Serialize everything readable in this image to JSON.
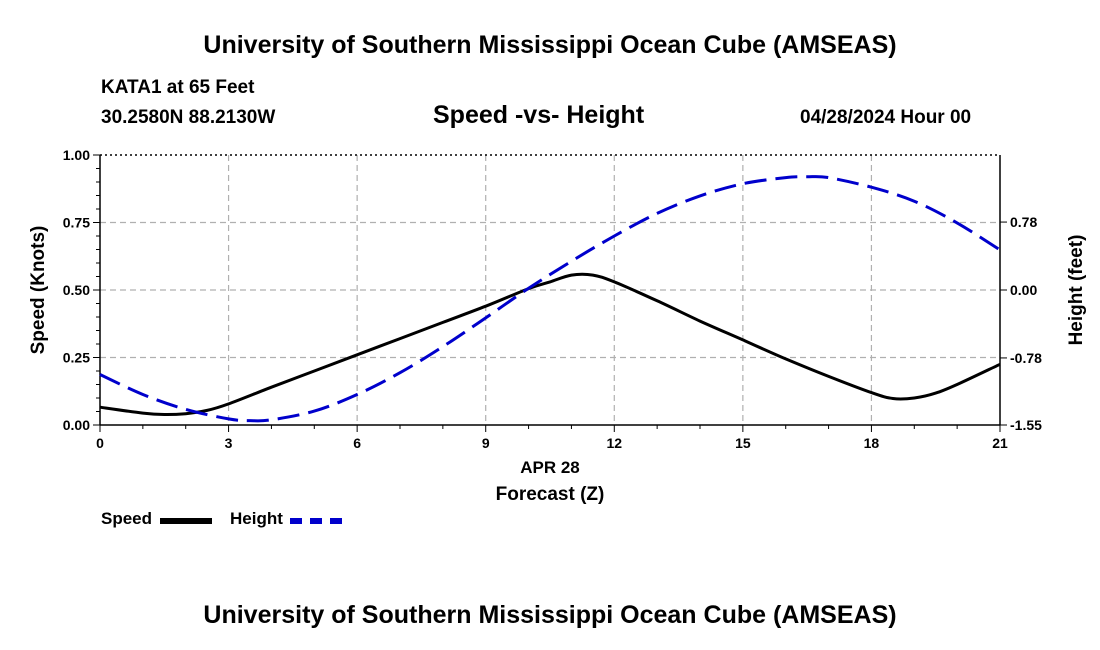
{
  "header": {
    "title": "University of Southern Mississippi Ocean Cube (AMSEAS)",
    "station": "KATA1 at 65 Feet",
    "coords": "30.2580N  88.2130W",
    "chart_title": "Speed -vs- Height",
    "datetime": "04/28/2024 Hour 00"
  },
  "footer": {
    "title": "University of Southern Mississippi Ocean Cube (AMSEAS)"
  },
  "legend": {
    "speed_label": "Speed",
    "height_label": "Height",
    "speed_color": "#000000",
    "height_color": "#0000cc"
  },
  "chart_data": {
    "type": "line",
    "title": "Speed -vs- Height",
    "xlabel": "Forecast (Z)",
    "xsublabel": "APR 28",
    "ylabel": "Speed (Knots)",
    "y2label": "Height (feet)",
    "xlim": [
      0,
      21
    ],
    "ylim": [
      0,
      1
    ],
    "y2lim": [
      -1.55,
      1.55
    ],
    "x_ticks": [
      0,
      3,
      6,
      9,
      12,
      15,
      18,
      21
    ],
    "x_tick_labels": [
      "0",
      "3",
      "6",
      "9",
      "12",
      "15",
      "18",
      "21"
    ],
    "y_ticks": [
      0,
      0.25,
      0.5,
      0.75,
      1.0
    ],
    "y_tick_labels": [
      "0.00",
      "0.25",
      "0.50",
      "0.75",
      "1.00"
    ],
    "y2_ticks": [
      -1.55,
      -0.78,
      0.0,
      0.78
    ],
    "y2_tick_labels": [
      "-1.55",
      "-0.78",
      "0.00",
      "0.78"
    ],
    "grid": true,
    "series": [
      {
        "name": "Speed",
        "axis": "left",
        "style": "solid",
        "color": "#000000",
        "x": [
          0,
          1,
          1.5,
          2,
          2.5,
          3,
          4,
          5,
          6,
          7,
          8,
          9,
          10,
          10.5,
          11,
          11.5,
          12,
          13,
          14,
          15,
          16,
          17,
          18,
          18.5,
          19,
          19.5,
          20,
          21
        ],
        "values": [
          0.066,
          0.044,
          0.039,
          0.042,
          0.054,
          0.078,
          0.14,
          0.2,
          0.26,
          0.32,
          0.38,
          0.44,
          0.505,
          0.53,
          0.555,
          0.555,
          0.53,
          0.46,
          0.385,
          0.315,
          0.245,
          0.18,
          0.12,
          0.098,
          0.1,
          0.118,
          0.15,
          0.225
        ]
      },
      {
        "name": "Height",
        "axis": "right",
        "style": "dashed",
        "color": "#0000cc",
        "x": [
          0,
          1,
          2,
          3,
          3.5,
          4,
          5,
          6,
          7,
          8,
          9,
          10,
          11,
          12,
          13,
          14,
          15,
          16,
          16.5,
          17,
          18,
          19,
          20,
          21
        ],
        "values": [
          -0.97,
          -1.2,
          -1.37,
          -1.48,
          -1.5,
          -1.49,
          -1.39,
          -1.2,
          -0.95,
          -0.65,
          -0.32,
          0.02,
          0.33,
          0.62,
          0.88,
          1.08,
          1.22,
          1.29,
          1.3,
          1.29,
          1.18,
          1.02,
          0.77,
          0.46
        ]
      }
    ]
  }
}
